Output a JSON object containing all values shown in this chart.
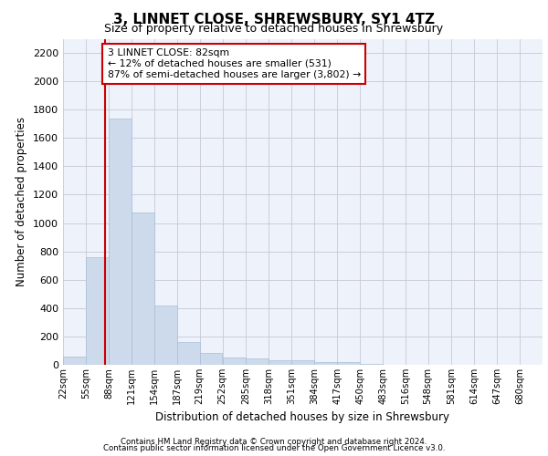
{
  "title": "3, LINNET CLOSE, SHREWSBURY, SY1 4TZ",
  "subtitle": "Size of property relative to detached houses in Shrewsbury",
  "xlabel": "Distribution of detached houses by size in Shrewsbury",
  "ylabel": "Number of detached properties",
  "bar_color": "#ccdaeb",
  "bar_edge_color": "#aabfd8",
  "highlight_color": "#cc0000",
  "background_color": "#eef2fa",
  "grid_color": "#c8c8d8",
  "annotation_text": "3 LINNET CLOSE: 82sqm\n← 12% of detached houses are smaller (531)\n87% of semi-detached houses are larger (3,802) →",
  "property_size": 82,
  "footer1": "Contains HM Land Registry data © Crown copyright and database right 2024.",
  "footer2": "Contains public sector information licensed under the Open Government Licence v3.0.",
  "bin_labels": [
    "22sqm",
    "55sqm",
    "88sqm",
    "121sqm",
    "154sqm",
    "187sqm",
    "219sqm",
    "252sqm",
    "285sqm",
    "318sqm",
    "351sqm",
    "384sqm",
    "417sqm",
    "450sqm",
    "483sqm",
    "516sqm",
    "548sqm",
    "581sqm",
    "614sqm",
    "647sqm",
    "680sqm"
  ],
  "bin_edges": [
    22,
    55,
    88,
    121,
    154,
    187,
    219,
    252,
    285,
    318,
    351,
    384,
    417,
    450,
    483,
    516,
    548,
    581,
    614,
    647,
    680
  ],
  "bar_heights": [
    55,
    760,
    1740,
    1075,
    415,
    160,
    85,
    50,
    45,
    30,
    30,
    20,
    20,
    4,
    2,
    2,
    1,
    1,
    1,
    1,
    0
  ],
  "ylim": [
    0,
    2300
  ],
  "yticks": [
    0,
    200,
    400,
    600,
    800,
    1000,
    1200,
    1400,
    1600,
    1800,
    2000,
    2200
  ]
}
